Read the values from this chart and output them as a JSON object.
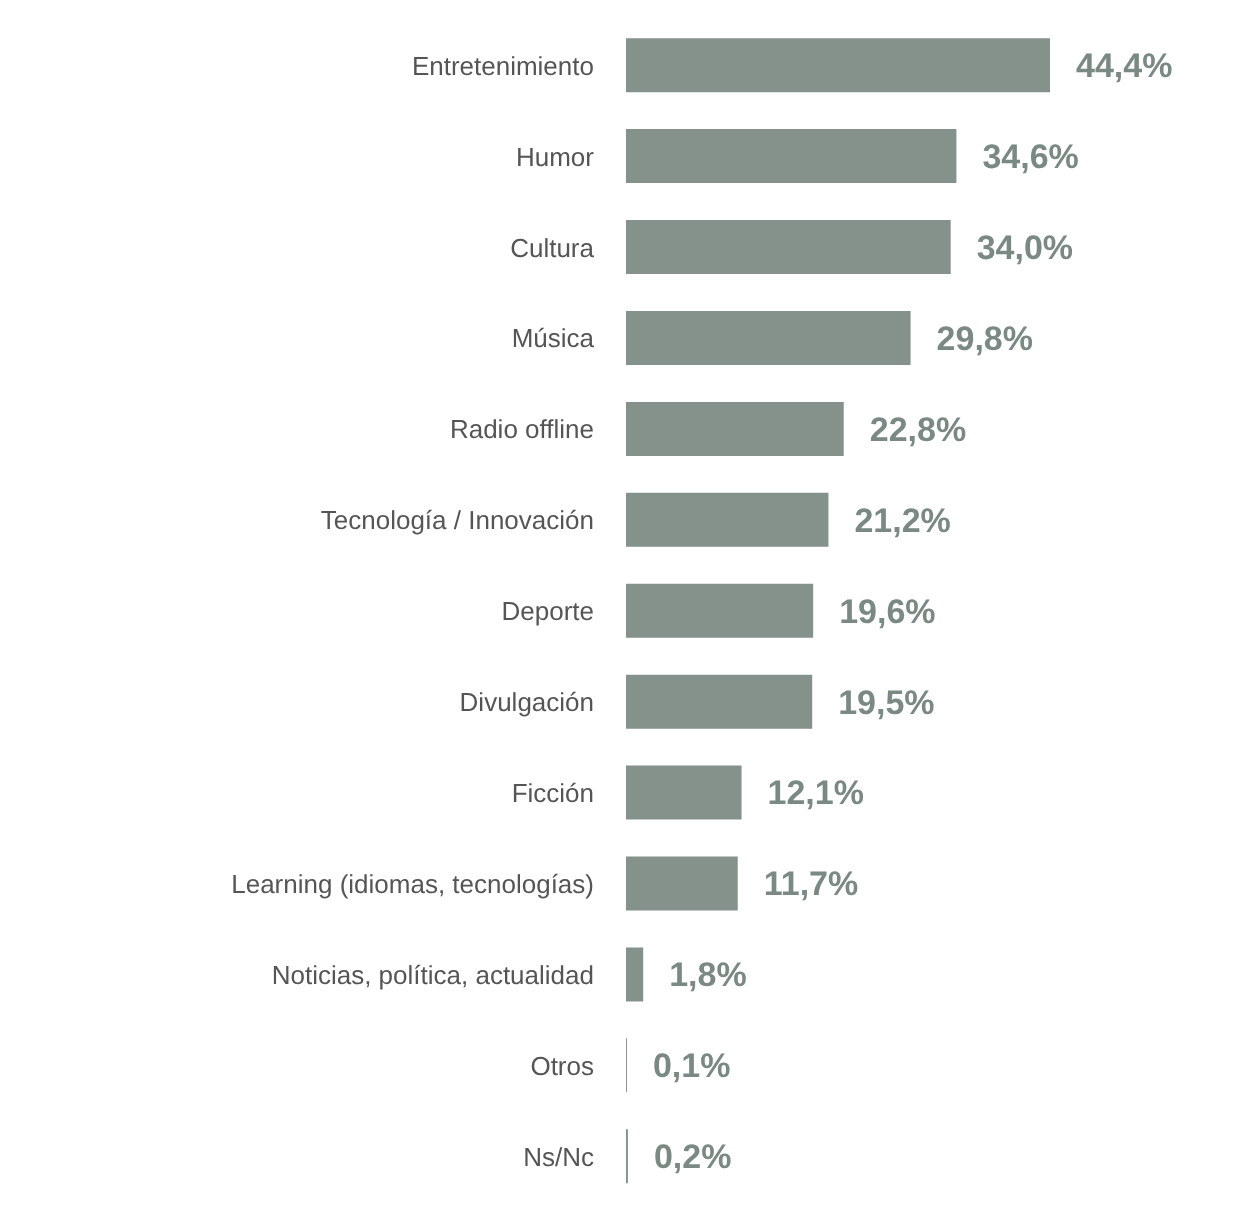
{
  "chart_data": {
    "type": "bar",
    "orientation": "horizontal",
    "categories": [
      "Entretenimiento",
      "Humor",
      "Cultura",
      "Música",
      "Radio offline",
      "Tecnología / Innovación",
      "Deporte",
      "Divulgación",
      "Ficción",
      "Learning (idiomas, tecnologías)",
      "Noticias, política, actualidad",
      "Otros",
      "Ns/Nc"
    ],
    "values": [
      44.4,
      34.6,
      34.0,
      29.8,
      22.8,
      21.2,
      19.6,
      19.5,
      12.1,
      11.7,
      1.8,
      0.1,
      0.2
    ],
    "value_labels": [
      "44,4%",
      "34,6%",
      "34,0%",
      "29,8%",
      "22,8%",
      "21,2%",
      "19,6%",
      "19,5%",
      "12,1%",
      "11,7%",
      "1,8%",
      "0,1%",
      "0,2%"
    ],
    "color": "#84928b",
    "grid": false,
    "legend": false
  }
}
